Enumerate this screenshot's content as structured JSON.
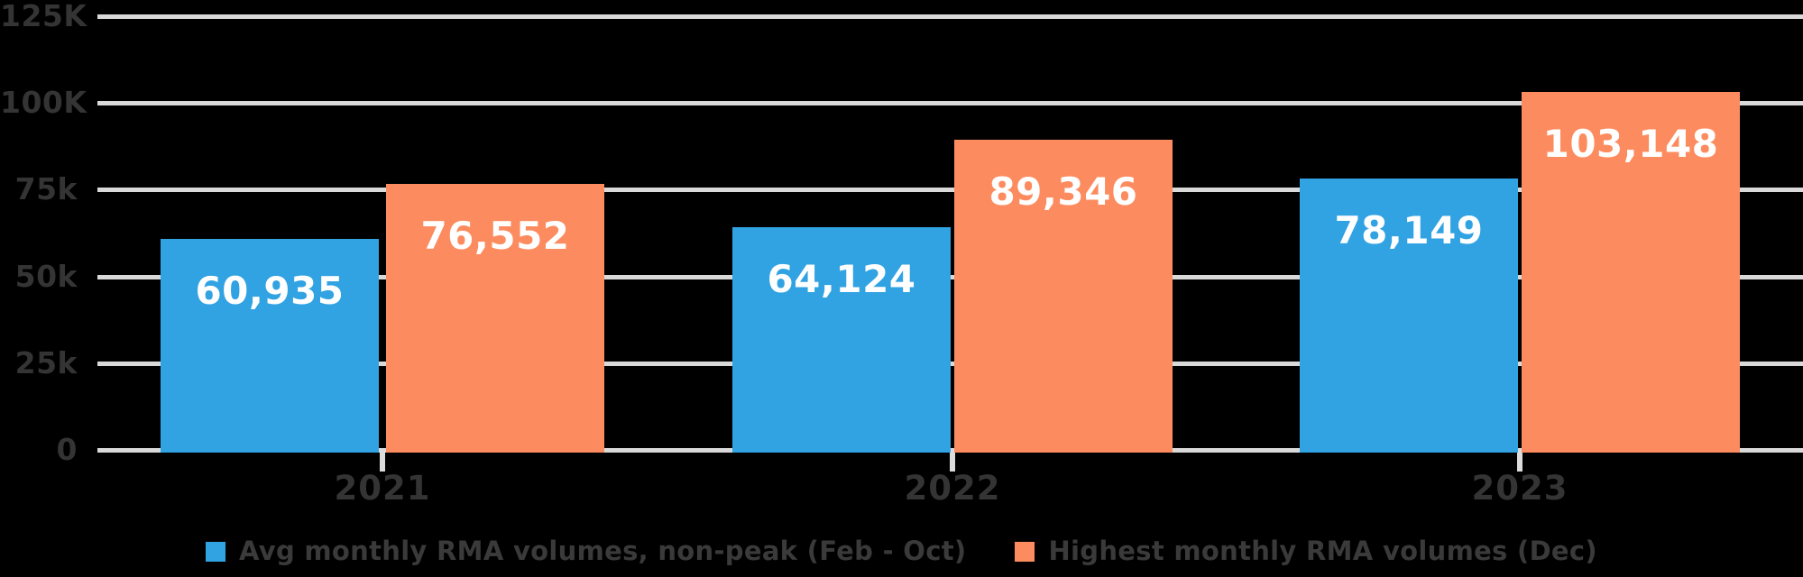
{
  "chart_data": {
    "type": "bar",
    "title": "",
    "categories": [
      "2021",
      "2022",
      "2023"
    ],
    "series": [
      {
        "name": "Avg monthly RMA volumes, non-peak (Feb - Oct)",
        "color": "#31A2E2",
        "values": [
          60935,
          64124,
          78149
        ],
        "labels": [
          "60,935",
          "64,124",
          "78,149"
        ]
      },
      {
        "name": "Highest monthly RMA volumes (Dec)",
        "color": "#FC8C5F",
        "values": [
          76552,
          89346,
          103148
        ],
        "labels": [
          "76,552",
          "89,346",
          "103,148"
        ]
      }
    ],
    "yaxis": {
      "max": 125000,
      "ticks": [
        {
          "label": "0",
          "value": 0
        },
        {
          "label": "25k",
          "value": 25000
        },
        {
          "label": "50k",
          "value": 50000
        },
        {
          "label": "75k",
          "value": 75000
        },
        {
          "label": "100K",
          "value": 100000
        },
        {
          "label": "125K",
          "value": 125000
        }
      ]
    },
    "grid": true,
    "legend_position": "bottom",
    "colors": {
      "background": "#000000",
      "gridline": "#D9D9D9",
      "axis_text": "#343434",
      "legend_text": "#3A3A3A",
      "value_text": "#FFFFFF"
    }
  }
}
